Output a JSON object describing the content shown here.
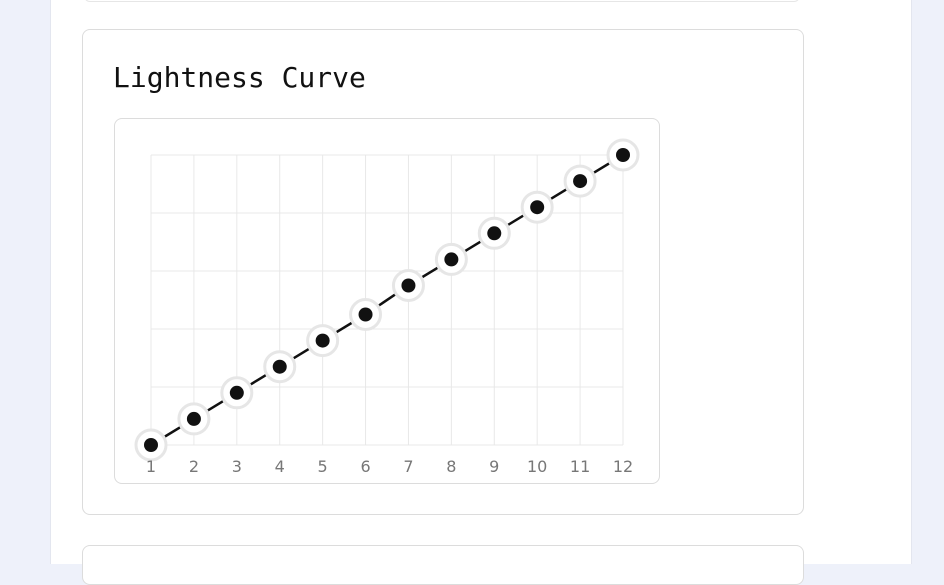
{
  "card": {
    "title": "Lightness Curve"
  },
  "chart_data": {
    "type": "line",
    "title": "Lightness Curve",
    "xlabel": "",
    "ylabel": "",
    "x": [
      1,
      2,
      3,
      4,
      5,
      6,
      7,
      8,
      9,
      10,
      11,
      12
    ],
    "x_tick_labels": [
      "1",
      "2",
      "3",
      "4",
      "5",
      "6",
      "7",
      "8",
      "9",
      "10",
      "11",
      "12"
    ],
    "series": [
      {
        "values": [
          0,
          0.09,
          0.18,
          0.27,
          0.36,
          0.45,
          0.55,
          0.64,
          0.73,
          0.82,
          0.91,
          1.0
        ]
      }
    ],
    "ylim": [
      0,
      1
    ],
    "y_gridlines": [
      0,
      0.2,
      0.4,
      0.6,
      0.8,
      1.0
    ],
    "grid": true,
    "legend": "none",
    "colors": {
      "line": "#111111",
      "point": "#111111",
      "point_halo": "#e6e6e6",
      "grid": "#e8e8e8",
      "tick_text": "#777777"
    }
  }
}
